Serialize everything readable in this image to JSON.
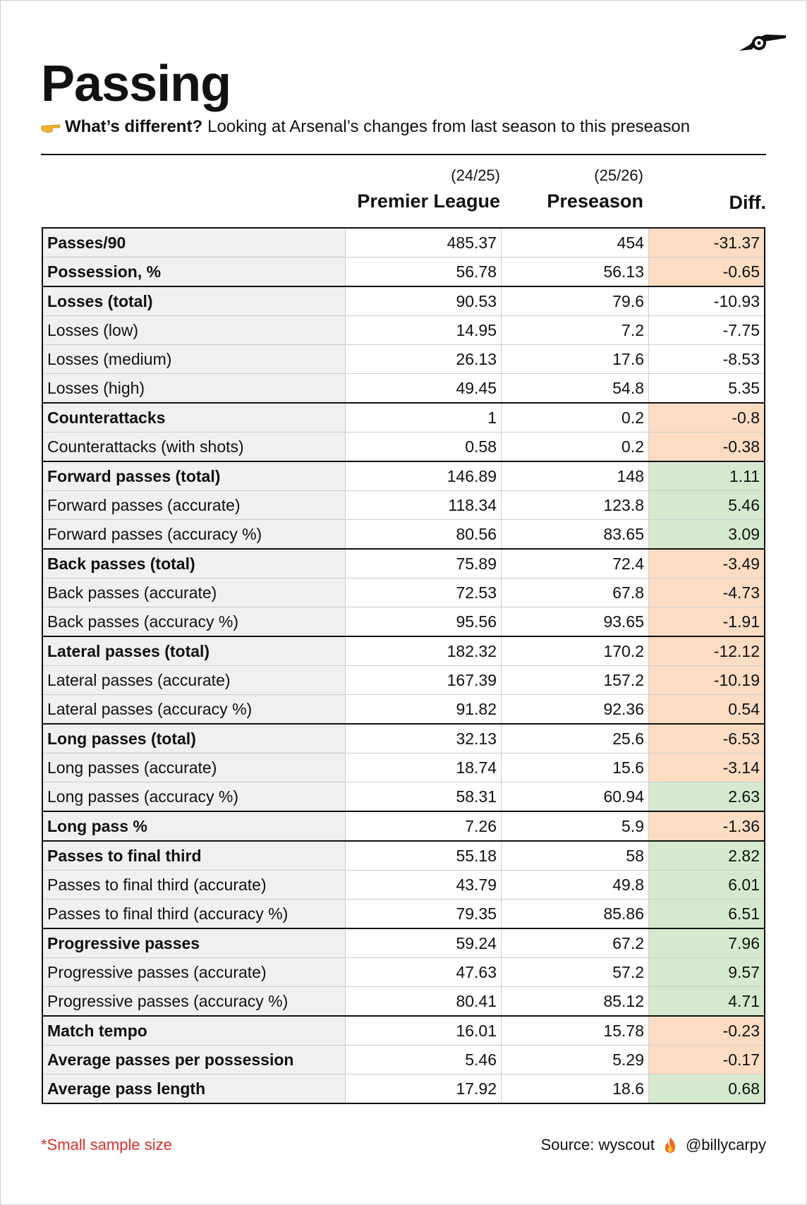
{
  "header": {
    "title": "Passing",
    "subtitle": {
      "lead": "What’s different?",
      "text": "Looking at Arsenal’s changes from last season to this preseason"
    }
  },
  "table": {
    "columns": [
      {
        "season": "(24/25)",
        "name": "Premier League"
      },
      {
        "season": "(25/26)",
        "name": "Preseason"
      },
      {
        "name": "Diff."
      }
    ],
    "groups": [
      {
        "rows": [
          {
            "label": "Passes/90",
            "bold": true,
            "pl": 485.37,
            "pre": 454,
            "diff": -31.37,
            "diff_color": "#fcdcc3"
          },
          {
            "label": "Possession, %",
            "bold": true,
            "pl": 56.78,
            "pre": 56.13,
            "diff": -0.65,
            "diff_color": "#fcdcc3"
          }
        ]
      },
      {
        "rows": [
          {
            "label": "Losses (total)",
            "bold": true,
            "pl": 90.53,
            "pre": 79.6,
            "diff": -10.93,
            "diff_color": null
          },
          {
            "label": "Losses (low)",
            "bold": false,
            "pl": 14.95,
            "pre": 7.2,
            "diff": -7.75,
            "diff_color": null
          },
          {
            "label": "Losses (medium)",
            "bold": false,
            "pl": 26.13,
            "pre": 17.6,
            "diff": -8.53,
            "diff_color": null
          },
          {
            "label": "Losses (high)",
            "bold": false,
            "pl": 49.45,
            "pre": 54.8,
            "diff": 5.35,
            "diff_color": null
          }
        ]
      },
      {
        "rows": [
          {
            "label": "Counterattacks",
            "bold": true,
            "pl": 1,
            "pre": 0.2,
            "diff": -0.8,
            "diff_color": "#fcdcc3"
          },
          {
            "label": "Counterattacks (with shots)",
            "bold": false,
            "pl": 0.58,
            "pre": 0.2,
            "diff": -0.38,
            "diff_color": "#fcdcc3"
          }
        ]
      },
      {
        "rows": [
          {
            "label": "Forward passes (total)",
            "bold": true,
            "pl": 146.89,
            "pre": 148,
            "diff": 1.11,
            "diff_color": "#d6e9cf"
          },
          {
            "label": "Forward passes (accurate)",
            "bold": false,
            "pl": 118.34,
            "pre": 123.8,
            "diff": 5.46,
            "diff_color": "#d6e9cf"
          },
          {
            "label": "Forward passes (accuracy %)",
            "bold": false,
            "pl": 80.56,
            "pre": 83.65,
            "diff": 3.09,
            "diff_color": "#d6e9cf"
          }
        ]
      },
      {
        "rows": [
          {
            "label": "Back passes (total)",
            "bold": true,
            "pl": 75.89,
            "pre": 72.4,
            "diff": -3.49,
            "diff_color": "#fcdcc3"
          },
          {
            "label": "Back passes (accurate)",
            "bold": false,
            "pl": 72.53,
            "pre": 67.8,
            "diff": -4.73,
            "diff_color": "#fcdcc3"
          },
          {
            "label": "Back passes (accuracy %)",
            "bold": false,
            "pl": 95.56,
            "pre": 93.65,
            "diff": -1.91,
            "diff_color": "#fcdcc3"
          }
        ]
      },
      {
        "rows": [
          {
            "label": "Lateral passes (total)",
            "bold": true,
            "pl": 182.32,
            "pre": 170.2,
            "diff": -12.12,
            "diff_color": "#fcdcc3"
          },
          {
            "label": "Lateral passes (accurate)",
            "bold": false,
            "pl": 167.39,
            "pre": 157.2,
            "diff": -10.19,
            "diff_color": "#fcdcc3"
          },
          {
            "label": "Lateral passes (accuracy %)",
            "bold": false,
            "pl": 91.82,
            "pre": 92.36,
            "diff": 0.54,
            "diff_color": "#fcdcc3"
          }
        ]
      },
      {
        "rows": [
          {
            "label": "Long passes (total)",
            "bold": true,
            "pl": 32.13,
            "pre": 25.6,
            "diff": -6.53,
            "diff_color": "#fcdcc3"
          },
          {
            "label": "Long passes (accurate)",
            "bold": false,
            "pl": 18.74,
            "pre": 15.6,
            "diff": -3.14,
            "diff_color": "#fcdcc3"
          },
          {
            "label": "Long passes (accuracy %)",
            "bold": false,
            "pl": 58.31,
            "pre": 60.94,
            "diff": 2.63,
            "diff_color": "#d6e9cf"
          }
        ]
      },
      {
        "rows": [
          {
            "label": "Long pass %",
            "bold": true,
            "pl": 7.26,
            "pre": 5.9,
            "diff": -1.36,
            "diff_color": "#fcdcc3"
          }
        ]
      },
      {
        "rows": [
          {
            "label": "Passes to final third",
            "bold": true,
            "pl": 55.18,
            "pre": 58,
            "diff": 2.82,
            "diff_color": "#d6e9cf"
          },
          {
            "label": "Passes to final third (accurate)",
            "bold": false,
            "pl": 43.79,
            "pre": 49.8,
            "diff": 6.01,
            "diff_color": "#d6e9cf"
          },
          {
            "label": "Passes to final third (accuracy %)",
            "bold": false,
            "pl": 79.35,
            "pre": 85.86,
            "diff": 6.51,
            "diff_color": "#d6e9cf"
          }
        ]
      },
      {
        "rows": [
          {
            "label": "Progressive passes",
            "bold": true,
            "pl": 59.24,
            "pre": 67.2,
            "diff": 7.96,
            "diff_color": "#d6e9cf"
          },
          {
            "label": "Progressive passes (accurate)",
            "bold": false,
            "pl": 47.63,
            "pre": 57.2,
            "diff": 9.57,
            "diff_color": "#d6e9cf"
          },
          {
            "label": "Progressive passes (accuracy %)",
            "bold": false,
            "pl": 80.41,
            "pre": 85.12,
            "diff": 4.71,
            "diff_color": "#d6e9cf"
          }
        ]
      },
      {
        "rows": [
          {
            "label": "Match tempo",
            "bold": true,
            "pl": 16.01,
            "pre": 15.78,
            "diff": -0.23,
            "diff_color": "#fcdcc3"
          },
          {
            "label": "Average passes per possession",
            "bold": true,
            "pl": 5.46,
            "pre": 5.29,
            "diff": -0.17,
            "diff_color": "#fcdcc3"
          },
          {
            "label": "Average pass length",
            "bold": true,
            "pl": 17.92,
            "pre": 18.6,
            "diff": 0.68,
            "diff_color": "#d6e9cf"
          }
        ]
      }
    ]
  },
  "footer": {
    "note": "*Small sample size",
    "source": "Source: wyscout",
    "handle": "@billycarpy"
  }
}
